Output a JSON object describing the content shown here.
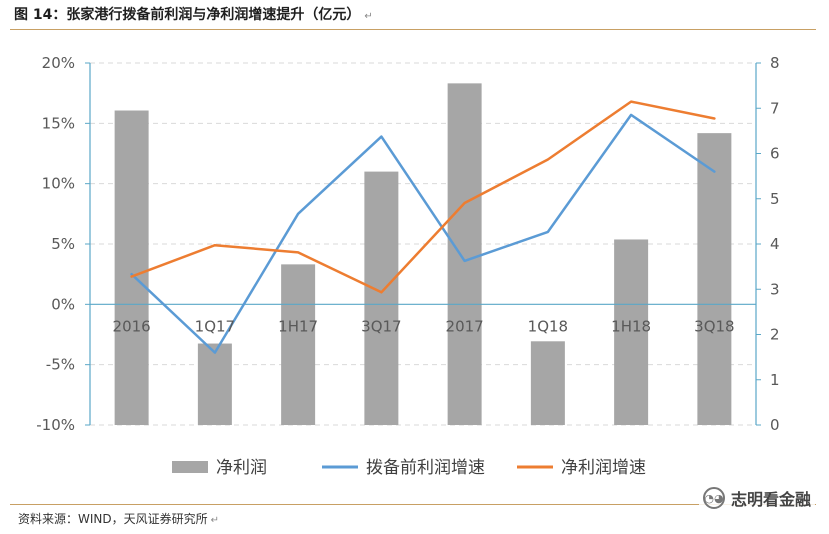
{
  "header": {
    "title": "图 14：张家港行拨备前利润与净利润增速提升（亿元）",
    "end_mark": "↵"
  },
  "footer": {
    "source": "资料来源：WIND，天风证券研究所",
    "end_mark": "↵"
  },
  "watermark": {
    "text": "志明看金融"
  },
  "chart_data": {
    "type": "bar",
    "categories": [
      "2016",
      "1Q17",
      "1H17",
      "3Q17",
      "2017",
      "1Q18",
      "1H18",
      "3Q18"
    ],
    "y_left": {
      "min": -0.1,
      "max": 0.2,
      "ticks": [
        -0.1,
        -0.05,
        0,
        0.05,
        0.1,
        0.15,
        0.2
      ],
      "tick_labels": [
        "-10%",
        "-5%",
        "0%",
        "5%",
        "10%",
        "15%",
        "20%"
      ]
    },
    "y_right": {
      "min": 0,
      "max": 8,
      "ticks": [
        0,
        1,
        2,
        3,
        4,
        5,
        6,
        7,
        8
      ],
      "tick_labels": [
        "0",
        "1",
        "2",
        "3",
        "4",
        "5",
        "6",
        "7",
        "8"
      ]
    },
    "grid": true,
    "legend_position": "bottom",
    "series": [
      {
        "name": "净利润",
        "type": "bar",
        "axis": "right",
        "color": "#a6a6a6",
        "values": [
          6.95,
          1.8,
          3.55,
          5.6,
          7.55,
          1.85,
          4.1,
          6.45
        ]
      },
      {
        "name": "拨备前利润增速",
        "type": "line",
        "axis": "left",
        "color": "#5b9bd5",
        "values": [
          0.025,
          -0.04,
          0.075,
          0.139,
          0.036,
          0.06,
          0.157,
          0.11
        ]
      },
      {
        "name": "净利润增速",
        "type": "line",
        "axis": "left",
        "color": "#ed7d31",
        "values": [
          0.023,
          0.049,
          0.043,
          0.01,
          0.084,
          0.12,
          0.168,
          0.154
        ]
      }
    ]
  }
}
